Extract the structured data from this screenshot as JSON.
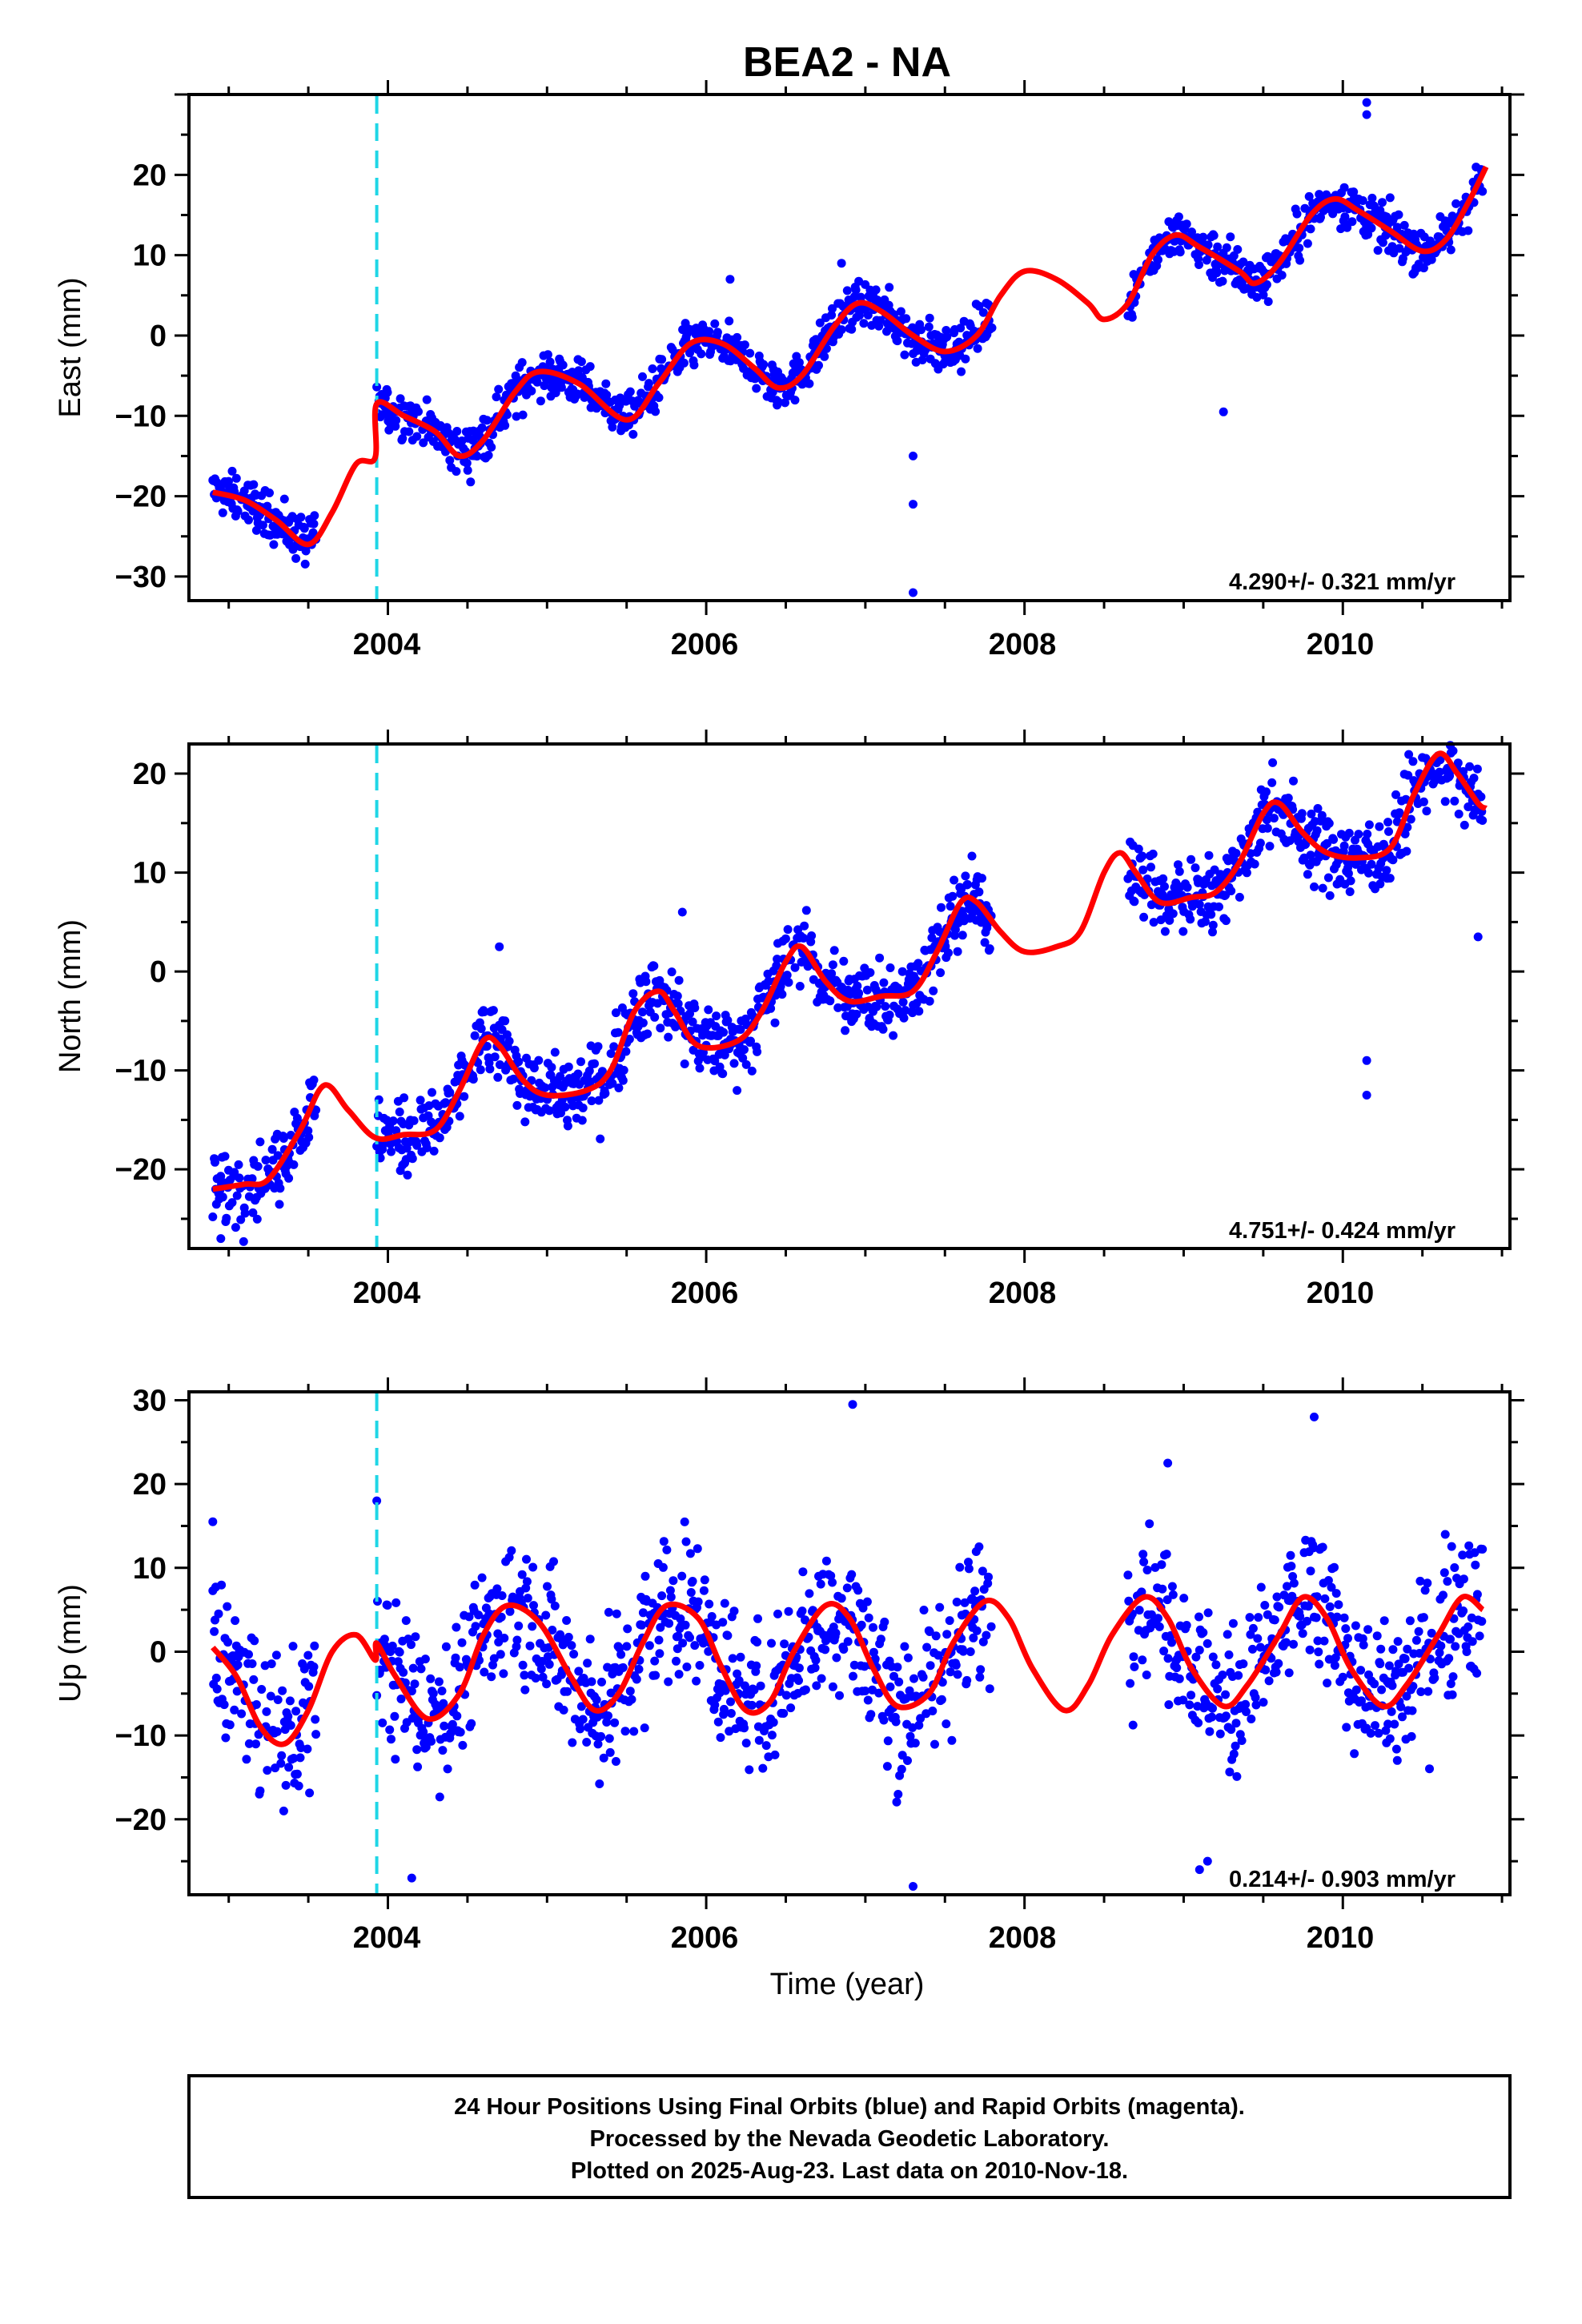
{
  "chart_data": {
    "type": "scatter",
    "title": "BEA2 - NA",
    "xlabel": "Time (year)",
    "x_tick_labels": [
      "2004",
      "2006",
      "2008",
      "2010"
    ],
    "xlim": [
      2002.75,
      2011.05
    ],
    "offset_marker_year": 2003.93,
    "colors": {
      "data": "#0000ff",
      "model": "#ff0000",
      "offset": "#1fd6e6"
    },
    "panels": [
      {
        "name": "east",
        "ylabel": "East (mm)",
        "ylim": [
          -33,
          30
        ],
        "yticks": [
          -30,
          -20,
          -10,
          0,
          10,
          20
        ],
        "rate_label": "4.290+/- 0.321 mm/yr",
        "data_segments": [
          [
            2002.9,
            2003.55
          ],
          [
            2003.93,
            2007.8
          ],
          [
            2008.65,
            2010.88
          ]
        ],
        "model_points": [
          [
            2002.9,
            -19.5
          ],
          [
            2003.1,
            -20.5
          ],
          [
            2003.3,
            -23
          ],
          [
            2003.5,
            -26
          ],
          [
            2003.65,
            -22
          ],
          [
            2003.8,
            -16
          ],
          [
            2003.92,
            -15.2
          ],
          [
            2003.93,
            -8.5
          ],
          [
            2004.1,
            -10
          ],
          [
            2004.3,
            -12
          ],
          [
            2004.45,
            -15
          ],
          [
            2004.6,
            -13
          ],
          [
            2004.8,
            -7
          ],
          [
            2004.95,
            -4.5
          ],
          [
            2005.2,
            -6
          ],
          [
            2005.5,
            -10.5
          ],
          [
            2005.7,
            -6
          ],
          [
            2005.9,
            -1
          ],
          [
            2006.1,
            -1
          ],
          [
            2006.3,
            -4
          ],
          [
            2006.45,
            -6.5
          ],
          [
            2006.6,
            -5
          ],
          [
            2006.8,
            1
          ],
          [
            2006.95,
            4
          ],
          [
            2007.1,
            3
          ],
          [
            2007.3,
            0
          ],
          [
            2007.5,
            -2
          ],
          [
            2007.7,
            0
          ],
          [
            2007.85,
            5
          ],
          [
            2008.0,
            8
          ],
          [
            2008.2,
            7
          ],
          [
            2008.4,
            4
          ],
          [
            2008.5,
            2
          ],
          [
            2008.65,
            4
          ],
          [
            2008.8,
            10
          ],
          [
            2008.95,
            12.5
          ],
          [
            2009.1,
            11
          ],
          [
            2009.35,
            8
          ],
          [
            2009.45,
            6.5
          ],
          [
            2009.6,
            9
          ],
          [
            2009.8,
            15
          ],
          [
            2009.95,
            17
          ],
          [
            2010.1,
            15.5
          ],
          [
            2010.3,
            13
          ],
          [
            2010.5,
            10.5
          ],
          [
            2010.65,
            12
          ],
          [
            2010.8,
            17
          ],
          [
            2010.9,
            21
          ]
        ],
        "outliers": [
          [
            2007.3,
            -15
          ],
          [
            2007.3,
            -21
          ],
          [
            2007.3,
            -32
          ],
          [
            2009.25,
            -9.5
          ],
          [
            2010.15,
            29
          ],
          [
            2010.15,
            27.5
          ],
          [
            2006.15,
            7
          ],
          [
            2006.85,
            9
          ],
          [
            2007.15,
            6
          ]
        ]
      },
      {
        "name": "north",
        "ylabel": "North (mm)",
        "ylim": [
          -28,
          23
        ],
        "yticks": [
          -20,
          -10,
          0,
          10,
          20
        ],
        "rate_label": "4.751+/- 0.424 mm/yr",
        "data_segments": [
          [
            2002.9,
            2003.55
          ],
          [
            2003.93,
            2007.8
          ],
          [
            2008.65,
            2010.88
          ]
        ],
        "model_points": [
          [
            2002.9,
            -22
          ],
          [
            2003.1,
            -21.5
          ],
          [
            2003.25,
            -21
          ],
          [
            2003.45,
            -16
          ],
          [
            2003.6,
            -11.5
          ],
          [
            2003.75,
            -14
          ],
          [
            2003.92,
            -16.8
          ],
          [
            2004.1,
            -16.5
          ],
          [
            2004.3,
            -16
          ],
          [
            2004.45,
            -12
          ],
          [
            2004.6,
            -7
          ],
          [
            2004.7,
            -7.5
          ],
          [
            2004.85,
            -11
          ],
          [
            2005.0,
            -12.5
          ],
          [
            2005.25,
            -12
          ],
          [
            2005.4,
            -10
          ],
          [
            2005.55,
            -4
          ],
          [
            2005.7,
            -2
          ],
          [
            2005.8,
            -4
          ],
          [
            2005.95,
            -7.5
          ],
          [
            2006.2,
            -7
          ],
          [
            2006.35,
            -4
          ],
          [
            2006.5,
            1
          ],
          [
            2006.6,
            2.5
          ],
          [
            2006.75,
            -1
          ],
          [
            2006.9,
            -3
          ],
          [
            2007.1,
            -2.5
          ],
          [
            2007.3,
            -2
          ],
          [
            2007.45,
            2
          ],
          [
            2007.6,
            7
          ],
          [
            2007.7,
            7
          ],
          [
            2007.85,
            4
          ],
          [
            2008.0,
            2
          ],
          [
            2008.2,
            2.5
          ],
          [
            2008.35,
            4
          ],
          [
            2008.5,
            10
          ],
          [
            2008.6,
            12
          ],
          [
            2008.7,
            10
          ],
          [
            2008.85,
            7
          ],
          [
            2009.05,
            7.5
          ],
          [
            2009.2,
            8
          ],
          [
            2009.35,
            11
          ],
          [
            2009.5,
            16
          ],
          [
            2009.6,
            17
          ],
          [
            2009.75,
            14
          ],
          [
            2009.9,
            12
          ],
          [
            2010.1,
            11.5
          ],
          [
            2010.3,
            12.5
          ],
          [
            2010.45,
            18
          ],
          [
            2010.6,
            22
          ],
          [
            2010.72,
            20
          ],
          [
            2010.85,
            17
          ],
          [
            2010.9,
            16.5
          ]
        ],
        "outliers": [
          [
            2010.15,
            -9
          ],
          [
            2010.15,
            -12.5
          ],
          [
            2002.95,
            -27
          ],
          [
            2003.35,
            -18
          ],
          [
            2005.85,
            6
          ],
          [
            2010.85,
            3.5
          ],
          [
            2004.7,
            2.5
          ]
        ]
      },
      {
        "name": "up",
        "ylabel": "Up (mm)",
        "ylim": [
          -29,
          31
        ],
        "yticks": [
          -20,
          -10,
          0,
          10,
          20,
          30
        ],
        "rate_label": "0.214+/- 0.903 mm/yr",
        "data_segments": [
          [
            2002.9,
            2003.55
          ],
          [
            2003.93,
            2007.8
          ],
          [
            2008.65,
            2010.88
          ]
        ],
        "model_points": [
          [
            2002.9,
            0.5
          ],
          [
            2003.05,
            -3
          ],
          [
            2003.2,
            -9
          ],
          [
            2003.35,
            -11
          ],
          [
            2003.5,
            -7
          ],
          [
            2003.65,
            0
          ],
          [
            2003.8,
            2
          ],
          [
            2003.92,
            -1
          ],
          [
            2003.93,
            1
          ],
          [
            2004.05,
            -3
          ],
          [
            2004.25,
            -8
          ],
          [
            2004.45,
            -5
          ],
          [
            2004.6,
            2
          ],
          [
            2004.75,
            5.5
          ],
          [
            2004.95,
            3.5
          ],
          [
            2005.15,
            -3
          ],
          [
            2005.3,
            -7
          ],
          [
            2005.45,
            -5
          ],
          [
            2005.6,
            1
          ],
          [
            2005.75,
            5.5
          ],
          [
            2005.95,
            4
          ],
          [
            2006.1,
            -2
          ],
          [
            2006.25,
            -7
          ],
          [
            2006.4,
            -6
          ],
          [
            2006.55,
            0
          ],
          [
            2006.75,
            5.5
          ],
          [
            2006.9,
            4
          ],
          [
            2007.05,
            -2
          ],
          [
            2007.2,
            -6.5
          ],
          [
            2007.4,
            -5
          ],
          [
            2007.55,
            1
          ],
          [
            2007.75,
            6
          ],
          [
            2007.9,
            4
          ],
          [
            2008.05,
            -2
          ],
          [
            2008.25,
            -7
          ],
          [
            2008.4,
            -4
          ],
          [
            2008.55,
            2
          ],
          [
            2008.75,
            6.5
          ],
          [
            2008.9,
            4
          ],
          [
            2009.05,
            -2
          ],
          [
            2009.25,
            -6.5
          ],
          [
            2009.4,
            -4
          ],
          [
            2009.6,
            2
          ],
          [
            2009.75,
            6.5
          ],
          [
            2009.9,
            4
          ],
          [
            2010.05,
            -2
          ],
          [
            2010.25,
            -6.5
          ],
          [
            2010.4,
            -4
          ],
          [
            2010.6,
            2
          ],
          [
            2010.75,
            6.5
          ],
          [
            2010.88,
            5
          ]
        ],
        "outliers": [
          [
            2006.92,
            29.5
          ],
          [
            2009.82,
            28
          ],
          [
            2003.93,
            18
          ],
          [
            2007.3,
            -28
          ],
          [
            2004.15,
            -27
          ],
          [
            2009.1,
            -26
          ],
          [
            2009.15,
            -25
          ],
          [
            2008.9,
            22.5
          ],
          [
            2002.9,
            15.5
          ]
        ]
      }
    ]
  },
  "caption": {
    "line1": "24 Hour Positions Using Final Orbits (blue) and Rapid Orbits (magenta).",
    "line2": "Processed by the Nevada Geodetic Laboratory.",
    "line3": "Plotted on 2025-Aug-23. Last data on 2010-Nov-18."
  }
}
